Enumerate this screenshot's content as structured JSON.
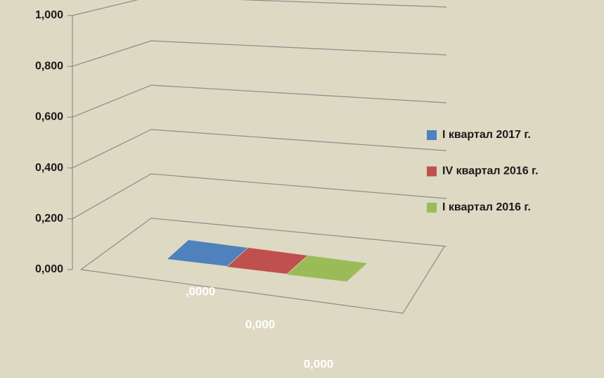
{
  "chart_data": {
    "type": "bar3d",
    "categories": [
      null
    ],
    "series": [
      {
        "name": "I квартал 2017 г.",
        "color": "#4f81bd",
        "values": [
          0
        ],
        "value_labels": [
          ",0000"
        ]
      },
      {
        "name": "IV квартал 2016 г.",
        "color": "#c0504d",
        "values": [
          0
        ],
        "value_labels": [
          "0,000"
        ]
      },
      {
        "name": "I квартал 2016 г.",
        "color": "#9bbb59",
        "values": [
          0
        ],
        "value_labels": [
          "0,000"
        ]
      }
    ],
    "ylim": [
      0,
      1
    ],
    "yticks": [
      {
        "value": 0,
        "label": "0,000"
      },
      {
        "value": 0.2,
        "label": "0,200"
      },
      {
        "value": 0.4,
        "label": "0,400"
      },
      {
        "value": 0.6,
        "label": "0,600"
      },
      {
        "value": 0.8,
        "label": "0,800"
      },
      {
        "value": 1,
        "label": "1,000"
      }
    ],
    "grid": true,
    "legend": "right"
  }
}
